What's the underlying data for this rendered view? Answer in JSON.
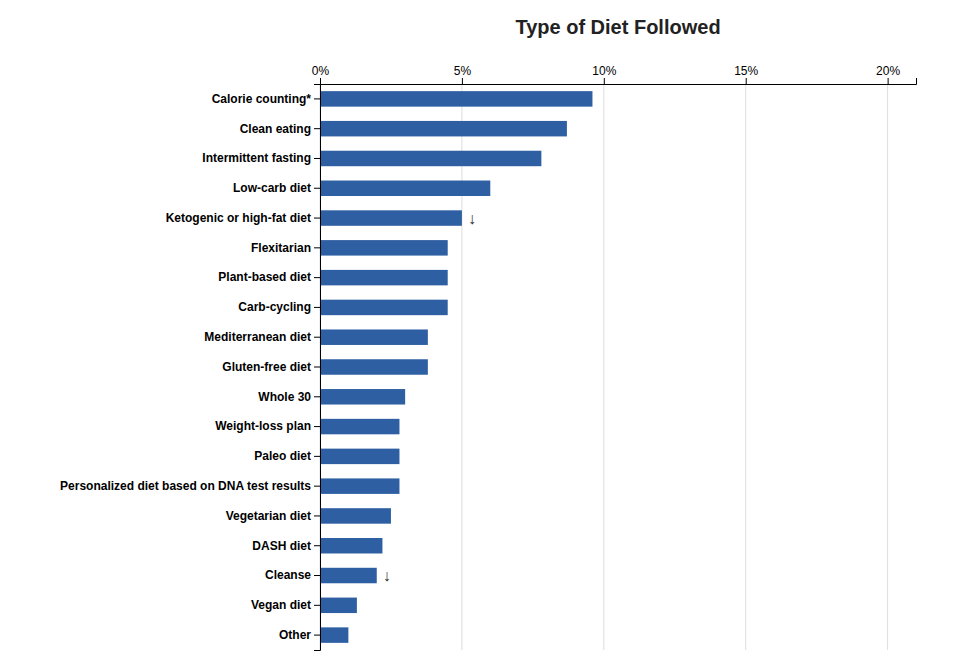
{
  "chart_data": {
    "type": "bar",
    "orientation": "horizontal",
    "title": "Type of Diet Followed",
    "categories": [
      "Other",
      "Vegan diet",
      "Cleanse",
      "DASH diet",
      "Vegetarian diet",
      "Personalized diet based on DNA test results",
      "Paleo diet",
      "Weight-loss plan",
      "Whole 30",
      "Gluten-free diet",
      "Mediterranean diet",
      "Carb-cycling",
      "Plant-based diet",
      "Flexitarian",
      "Ketogenic or high-fat diet",
      "Low-carb diet",
      "Intermittent fasting",
      "Clean eating",
      "Calorie counting*"
    ],
    "values": [
      1.0,
      1.3,
      2.0,
      2.2,
      2.5,
      2.8,
      2.8,
      2.8,
      3.0,
      3.8,
      3.8,
      4.5,
      4.5,
      4.5,
      5.0,
      6.0,
      7.8,
      8.7,
      9.6
    ],
    "color": "#2E5FA3",
    "xlim": [
      0,
      21
    ],
    "xticks": [
      {
        "value": 0,
        "label": "0%"
      },
      {
        "value": 5,
        "label": "5%"
      },
      {
        "value": 10,
        "label": "10%"
      },
      {
        "value": 15,
        "label": "15%"
      },
      {
        "value": 20,
        "label": "20%"
      }
    ],
    "grid": true,
    "annotations": [
      {
        "text": "↓",
        "category": "Ketogenic or high-fat diet"
      },
      {
        "text": "↓",
        "category": "Cleanse"
      }
    ]
  }
}
